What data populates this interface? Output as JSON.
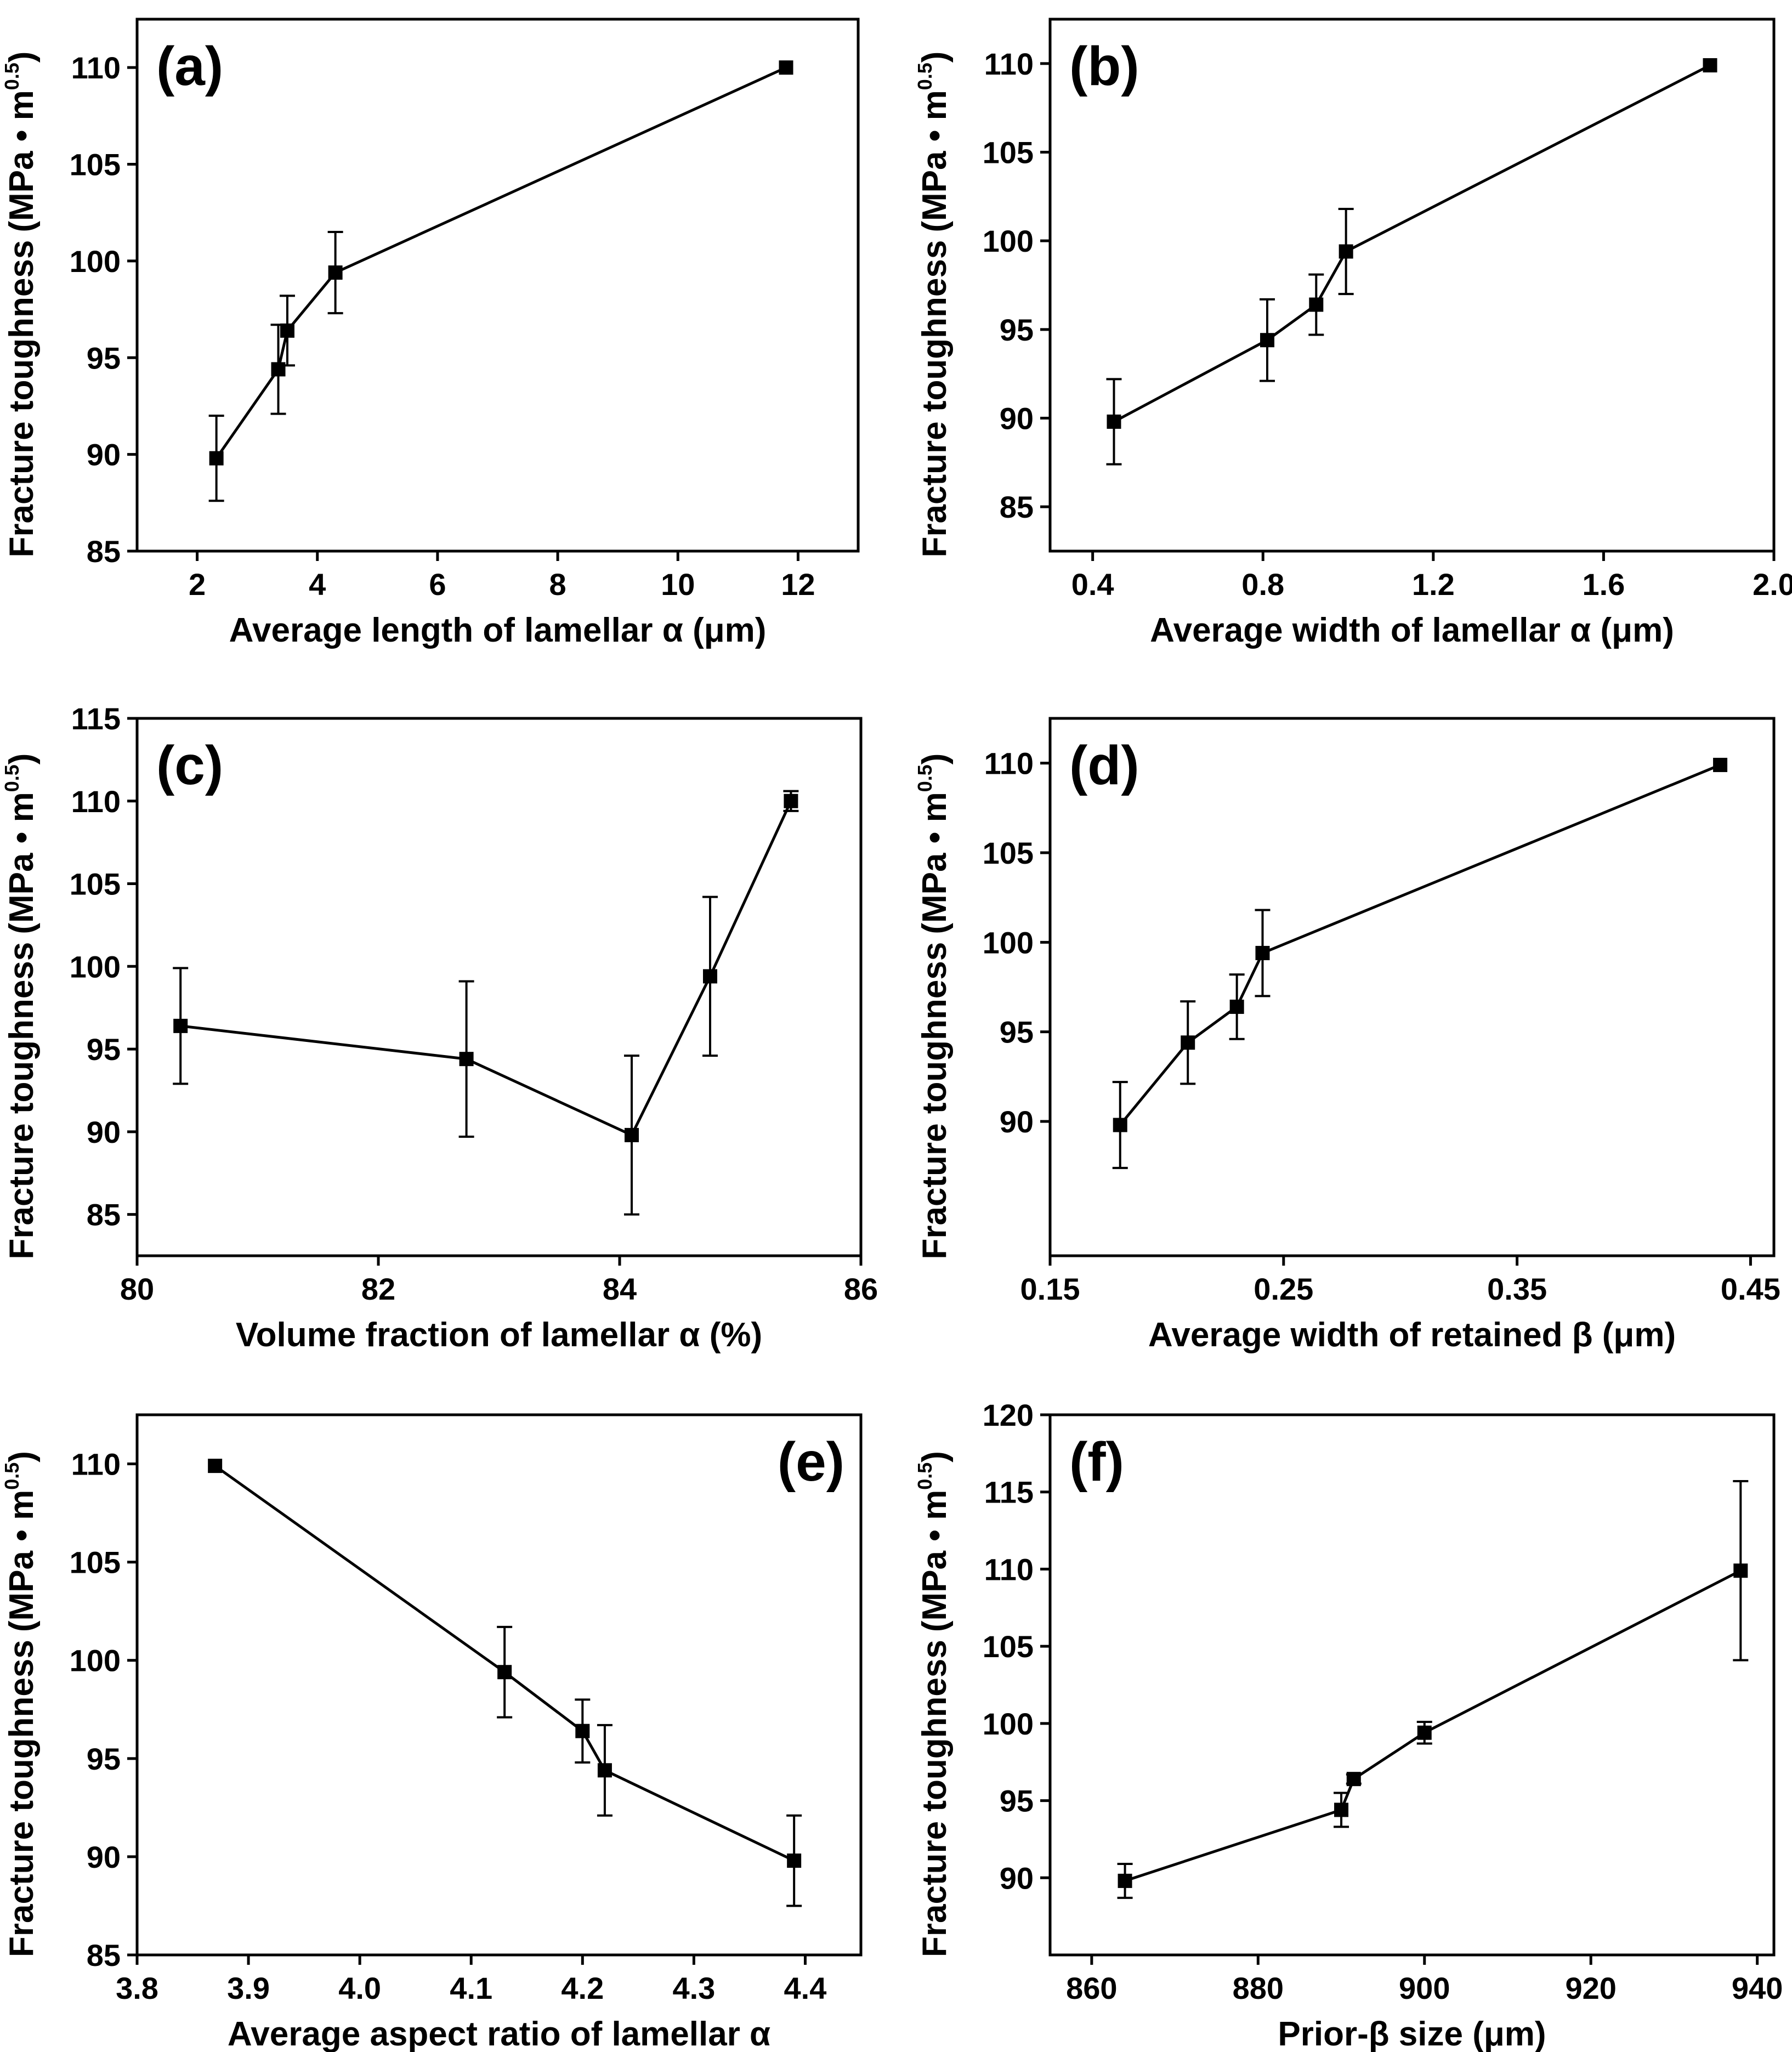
{
  "chart_data": [
    {
      "type": "line",
      "panel_label": "(a)",
      "xlabel": "Average length of lamellar α (μm)",
      "ylabel": "Fracture toughness",
      "ylabel_unit": "(MPa • m",
      "ylabel_exp": "0.5",
      "ylabel_close": ")",
      "xlim": [
        1.0,
        13.0
      ],
      "ylim": [
        85,
        112.5
      ],
      "xticks": [
        2,
        4,
        6,
        8,
        10,
        12
      ],
      "xtick_labels": [
        "2",
        "4",
        "6",
        "8",
        "10",
        "12"
      ],
      "yticks": [
        85,
        90,
        95,
        100,
        105,
        110
      ],
      "ytick_labels": [
        "85",
        "90",
        "95",
        "100",
        "105",
        "110"
      ],
      "points": [
        {
          "x": 2.32,
          "y": 89.8,
          "err": 2.2
        },
        {
          "x": 3.35,
          "y": 94.4,
          "err": 2.3
        },
        {
          "x": 3.5,
          "y": 96.4,
          "err": 1.8
        },
        {
          "x": 4.3,
          "y": 99.4,
          "err": 2.1
        },
        {
          "x": 11.8,
          "y": 110.0,
          "err": 0
        }
      ]
    },
    {
      "type": "line",
      "panel_label": "(b)",
      "xlabel": "Average width of lamellar α (μm)",
      "ylabel": "Fracture toughness",
      "ylabel_unit": "(MPa • m",
      "ylabel_exp": "0.5",
      "ylabel_close": ")",
      "xlim": [
        0.3,
        2.0
      ],
      "ylim": [
        82.5,
        112.5
      ],
      "xticks": [
        0.4,
        0.8,
        1.2,
        1.6,
        2.0
      ],
      "xtick_labels": [
        "0.4",
        "0.8",
        "1.2",
        "1.6",
        "2.0"
      ],
      "yticks": [
        85,
        90,
        95,
        100,
        105,
        110
      ],
      "ytick_labels": [
        "85",
        "90",
        "95",
        "100",
        "105",
        "110"
      ],
      "points": [
        {
          "x": 0.45,
          "y": 89.8,
          "err": 2.4
        },
        {
          "x": 0.81,
          "y": 94.4,
          "err": 2.3
        },
        {
          "x": 0.925,
          "y": 96.4,
          "err": 1.7
        },
        {
          "x": 0.995,
          "y": 99.4,
          "err": 2.4
        },
        {
          "x": 1.85,
          "y": 109.9,
          "err": 0
        }
      ]
    },
    {
      "type": "line",
      "panel_label": "(c)",
      "xlabel": "Volume fraction of lamellar α (%)",
      "ylabel": "Fracture toughness",
      "ylabel_unit": "(MPa • m",
      "ylabel_exp": "0.5",
      "ylabel_close": ")",
      "xlim": [
        80.0,
        86.0
      ],
      "ylim": [
        82.5,
        115
      ],
      "xticks": [
        80,
        82,
        84,
        86
      ],
      "xtick_labels": [
        "80",
        "82",
        "84",
        "86"
      ],
      "yticks": [
        85,
        90,
        95,
        100,
        105,
        110,
        115
      ],
      "ytick_labels": [
        "85",
        "90",
        "95",
        "100",
        "105",
        "110",
        "115"
      ],
      "points": [
        {
          "x": 80.36,
          "y": 96.4,
          "err": 3.5
        },
        {
          "x": 82.73,
          "y": 94.4,
          "err": 4.7
        },
        {
          "x": 84.1,
          "y": 89.8,
          "err": 4.8
        },
        {
          "x": 84.75,
          "y": 99.4,
          "err": 4.8
        },
        {
          "x": 85.42,
          "y": 110.0,
          "err": 0.6
        }
      ]
    },
    {
      "type": "line",
      "panel_label": "(d)",
      "xlabel": "Average width of retained β (μm)",
      "ylabel": "Fracture toughness",
      "ylabel_unit": "(MPa • m",
      "ylabel_exp": "0.5",
      "ylabel_close": ")",
      "xlim": [
        0.15,
        0.46
      ],
      "ylim": [
        82.5,
        112.5
      ],
      "xticks": [
        0.15,
        0.25,
        0.35,
        0.45
      ],
      "xtick_labels": [
        "0.15",
        "0.25",
        "0.35",
        "0.45"
      ],
      "yticks": [
        90,
        95,
        100,
        105,
        110
      ],
      "ytick_labels": [
        "90",
        "95",
        "100",
        "105",
        "110"
      ],
      "points": [
        {
          "x": 0.18,
          "y": 89.8,
          "err": 2.4
        },
        {
          "x": 0.209,
          "y": 94.4,
          "err": 2.3
        },
        {
          "x": 0.23,
          "y": 96.4,
          "err": 1.8
        },
        {
          "x": 0.241,
          "y": 99.4,
          "err": 2.4
        },
        {
          "x": 0.437,
          "y": 109.9,
          "err": 0
        }
      ]
    },
    {
      "type": "line",
      "panel_label": "(e)",
      "panel_label_position": "top-right",
      "xlabel": "Average aspect ratio of lamellar α",
      "ylabel": "Fracture toughness",
      "ylabel_unit": "(MPa • m",
      "ylabel_exp": "0.5",
      "ylabel_close": ")",
      "xlim": [
        3.8,
        4.45
      ],
      "ylim": [
        85,
        112.5
      ],
      "xticks": [
        3.8,
        3.9,
        4.0,
        4.1,
        4.2,
        4.3,
        4.4
      ],
      "xtick_labels": [
        "3.8",
        "3.9",
        "4.0",
        "4.1",
        "4.2",
        "4.3",
        "4.4"
      ],
      "yticks": [
        85,
        90,
        95,
        100,
        105,
        110
      ],
      "ytick_labels": [
        "85",
        "90",
        "95",
        "100",
        "105",
        "110"
      ],
      "points": [
        {
          "x": 3.87,
          "y": 109.9,
          "err": 0
        },
        {
          "x": 4.13,
          "y": 99.4,
          "err": 2.3
        },
        {
          "x": 4.2,
          "y": 96.4,
          "err": 1.6
        },
        {
          "x": 4.22,
          "y": 94.4,
          "err": 2.3
        },
        {
          "x": 4.39,
          "y": 89.8,
          "err": 2.3
        }
      ]
    },
    {
      "type": "line",
      "panel_label": "(f)",
      "xlabel": "Prior-β size (μm)",
      "ylabel": "Fracture toughness",
      "ylabel_unit": "(MPa • m",
      "ylabel_exp": "0.5",
      "ylabel_close": ")",
      "xlim": [
        855,
        942
      ],
      "ylim": [
        85,
        120
      ],
      "xticks": [
        860,
        880,
        900,
        920,
        940
      ],
      "xtick_labels": [
        "860",
        "880",
        "900",
        "920",
        "940"
      ],
      "yticks": [
        90,
        95,
        100,
        105,
        110,
        115,
        120
      ],
      "ytick_labels": [
        "90",
        "95",
        "100",
        "105",
        "110",
        "115",
        "120"
      ],
      "points": [
        {
          "x": 864,
          "y": 89.8,
          "err": 1.1
        },
        {
          "x": 890,
          "y": 94.4,
          "err": 1.1
        },
        {
          "x": 891.5,
          "y": 96.4,
          "err": 0.3
        },
        {
          "x": 900,
          "y": 99.4,
          "err": 0.7
        },
        {
          "x": 938,
          "y": 109.9,
          "err": 5.8
        }
      ]
    }
  ]
}
